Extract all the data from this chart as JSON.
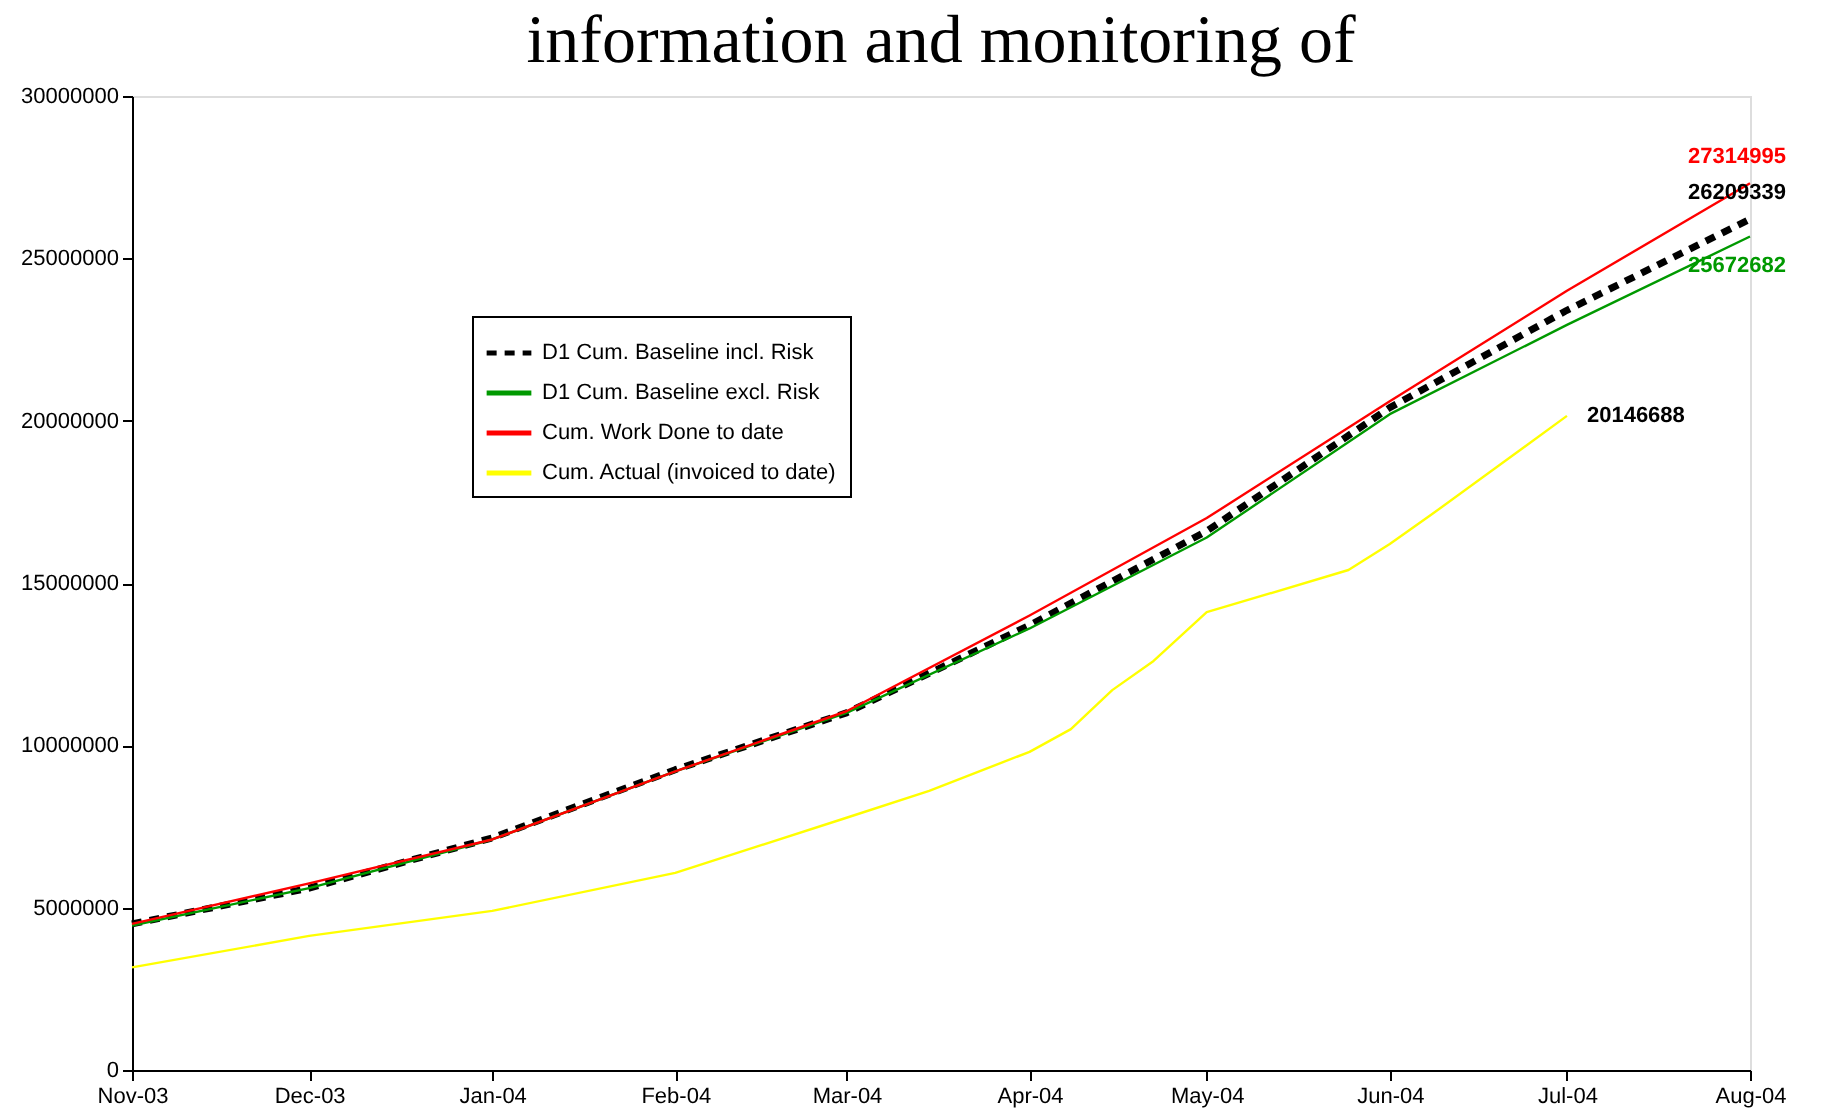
{
  "chart_data": {
    "type": "line",
    "title": "information and monitoring of",
    "xlim": [
      "2003-11-01",
      "2004-08-01"
    ],
    "xticks": [
      {
        "value": "2003-11-01",
        "label": "Nov-03"
      },
      {
        "value": "2003-12-01",
        "label": "Dec-03"
      },
      {
        "value": "2004-01-01",
        "label": "Jan-04"
      },
      {
        "value": "2004-02-01",
        "label": "Feb-04"
      },
      {
        "value": "2004-03-01",
        "label": "Mar-04"
      },
      {
        "value": "2004-04-01",
        "label": "Apr-04"
      },
      {
        "value": "2004-05-01",
        "label": "May-04"
      },
      {
        "value": "2004-06-01",
        "label": "Jun-04"
      },
      {
        "value": "2004-07-01",
        "label": "Jul-04"
      },
      {
        "value": "2004-08-01",
        "label": "Aug-04"
      }
    ],
    "ylim": [
      0,
      30000000
    ],
    "yticks": [
      0,
      5000000,
      10000000,
      15000000,
      20000000,
      25000000,
      30000000
    ],
    "grid": false,
    "legend": "top left",
    "marker": "none",
    "series": [
      {
        "name": "D1 Cum. Baseline incl. Risk",
        "color": "#000000",
        "line_style": "dashed",
        "x": [
          "2003-11-01",
          "2003-12-01",
          "2004-01-01",
          "2004-02-01",
          "2004-03-01",
          "2004-04-01",
          "2004-05-01",
          "2004-06-01",
          "2004-07-01",
          "2004-08-01"
        ],
        "values": [
          4500000,
          5600000,
          7150000,
          9250000,
          11000000,
          13700000,
          16600000,
          20400000,
          23400000,
          26209339
        ],
        "value_labels": [
          null,
          null,
          null,
          null,
          null,
          null,
          null,
          null,
          null,
          "26209339"
        ]
      },
      {
        "name": "D1 Cum. Baseline excl. Risk",
        "color": "#009900",
        "line_style": "solid",
        "x": [
          "2003-11-01",
          "2003-12-01",
          "2004-01-01",
          "2004-02-01",
          "2004-03-01",
          "2004-04-01",
          "2004-05-01",
          "2004-06-01",
          "2004-07-01",
          "2004-08-01"
        ],
        "values": [
          4450000,
          5600000,
          7100000,
          9200000,
          11000000,
          13600000,
          16400000,
          20200000,
          22950000,
          25672682
        ],
        "value_labels": [
          null,
          null,
          null,
          null,
          null,
          null,
          null,
          null,
          null,
          "25672682"
        ]
      },
      {
        "name": "Cum. Work Done to date",
        "color": "#ff0000",
        "line_style": "solid",
        "x": [
          "2003-11-01",
          "2003-12-01",
          "2004-01-01",
          "2004-02-01",
          "2004-03-01",
          "2004-04-01",
          "2004-05-01",
          "2004-06-01",
          "2004-07-01",
          "2004-08-01"
        ],
        "values": [
          4500000,
          5750000,
          7100000,
          9200000,
          11050000,
          14000000,
          17000000,
          20600000,
          24000000,
          27314995
        ],
        "value_labels": [
          null,
          null,
          null,
          null,
          null,
          null,
          null,
          null,
          null,
          "27314995"
        ]
      },
      {
        "name": "Cum. Actual (invoiced to date)",
        "color": "#ffff00",
        "line_style": "solid",
        "x": [
          "2003-11-01",
          "2003-12-01",
          "2004-01-01",
          "2004-02-01",
          "2004-03-01",
          "2004-03-15",
          "2004-04-01",
          "2004-04-08",
          "2004-04-15",
          "2004-04-22",
          "2004-05-01",
          "2004-05-25",
          "2004-06-01",
          "2004-06-08",
          "2004-07-01"
        ],
        "values": [
          3160000,
          4130000,
          4900000,
          6070000,
          7770000,
          8600000,
          9800000,
          10500000,
          11700000,
          12600000,
          14100000,
          15400000,
          16200000,
          17100000,
          20146688
        ],
        "value_labels": [
          null,
          null,
          null,
          null,
          null,
          null,
          null,
          null,
          null,
          null,
          null,
          null,
          null,
          null,
          "20146688"
        ]
      }
    ]
  }
}
